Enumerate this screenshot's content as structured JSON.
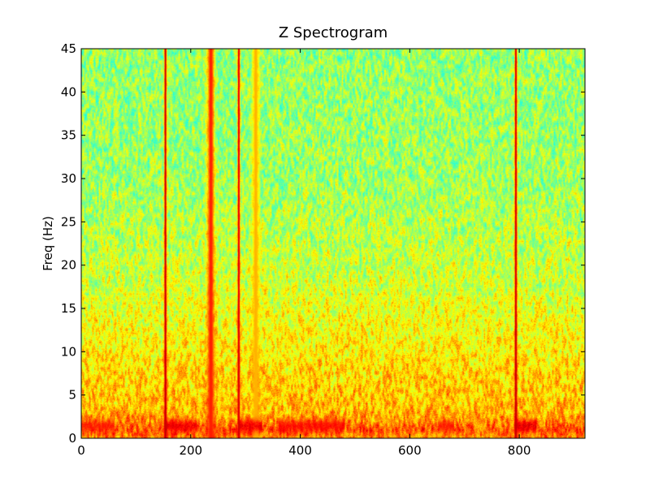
{
  "chart_data": {
    "type": "heatmap",
    "title": "Z Spectrogram",
    "xlabel": "",
    "ylabel": "Freq (Hz)",
    "xlim": [
      0,
      920
    ],
    "ylim": [
      0,
      45
    ],
    "x_ticks": [
      0,
      200,
      400,
      600,
      800
    ],
    "y_ticks": [
      0,
      5,
      10,
      15,
      20,
      25,
      30,
      35,
      40,
      45
    ],
    "colormap": "jet",
    "grid": false,
    "power_profile": {
      "description": "relative power (0..1 colormap level) by frequency band",
      "freq_hz": [
        0,
        1,
        2,
        3,
        5,
        8,
        10,
        13,
        18,
        23,
        30,
        45
      ],
      "level": [
        0.74,
        0.8,
        0.74,
        0.7,
        0.68,
        0.66,
        0.64,
        0.62,
        0.58,
        0.56,
        0.53,
        0.52
      ]
    },
    "vertical_events": [
      {
        "time": 153,
        "level": 0.95
      },
      {
        "time": 236,
        "level": 0.85
      },
      {
        "time": 287,
        "level": 0.93
      },
      {
        "time": 318,
        "level": 0.7
      },
      {
        "time": 793,
        "level": 0.95
      }
    ],
    "low_freq_bursts": [
      {
        "time_start": 0,
        "time_end": 60,
        "freq_hz": 1.5,
        "level": 0.86
      },
      {
        "time_start": 150,
        "time_end": 210,
        "freq_hz": 1.5,
        "level": 0.92
      },
      {
        "time_start": 285,
        "time_end": 330,
        "freq_hz": 1.5,
        "level": 0.92
      },
      {
        "time_start": 360,
        "time_end": 480,
        "freq_hz": 1.5,
        "level": 0.88
      },
      {
        "time_start": 650,
        "time_end": 680,
        "freq_hz": 1.5,
        "level": 0.86
      },
      {
        "time_start": 790,
        "time_end": 830,
        "freq_hz": 1.5,
        "level": 0.93
      }
    ]
  }
}
